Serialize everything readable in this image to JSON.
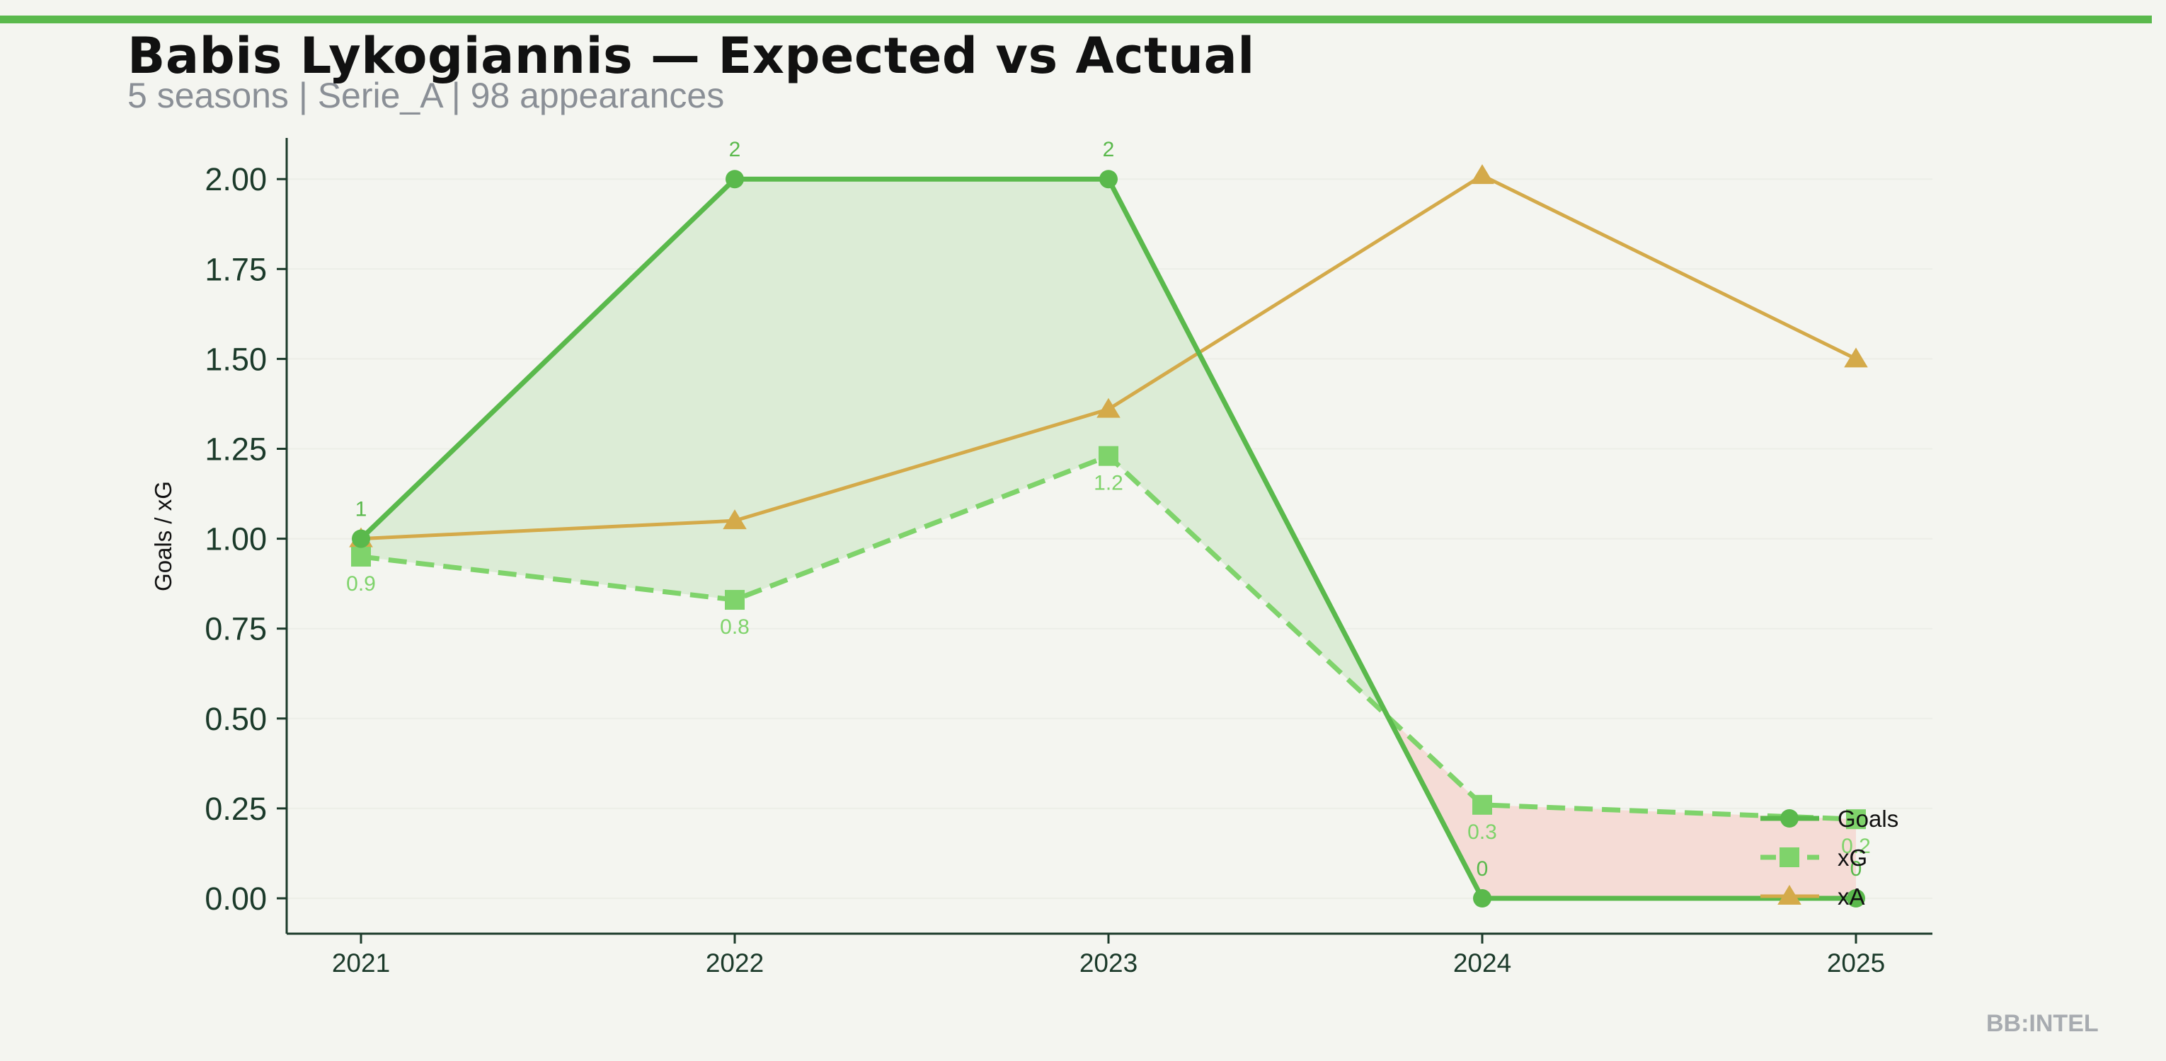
{
  "header": {
    "title": "Babis Lykogiannis — Expected vs Actual",
    "subtitle": "5 seasons | Serie_A | 98 appearances"
  },
  "watermark": "BB:INTEL",
  "colors": {
    "goals": "#5ab94c",
    "xg": "#7fd36b",
    "xa": "#d4aa4a",
    "overperform_fill": "#dcecd6",
    "underperform_fill": "#f5dcd6",
    "axis": "#1b3a2a",
    "grid": "#eceee7"
  },
  "chart_data": {
    "type": "line",
    "categories": [
      "2021",
      "2022",
      "2023",
      "2024",
      "2025"
    ],
    "ylabel": "Goals / xG",
    "ylim": [
      -0.1,
      2.12
    ],
    "yticks": [
      "0.00",
      "0.25",
      "0.50",
      "0.75",
      "1.00",
      "1.25",
      "1.50",
      "1.75",
      "2.00"
    ],
    "grid": "horizontal",
    "legend_position": "lower-right",
    "series": [
      {
        "name": "Goals",
        "values": [
          1,
          2,
          2,
          0,
          0
        ],
        "labels": [
          "1",
          "2",
          "2",
          "0",
          "0"
        ],
        "marker": "circle",
        "style": "solid"
      },
      {
        "name": "xG",
        "values": [
          0.95,
          0.83,
          1.23,
          0.26,
          0.22
        ],
        "labels": [
          "0.9",
          "0.8",
          "1.2",
          "0.3",
          "0.2"
        ],
        "marker": "square",
        "style": "dashed"
      },
      {
        "name": "xA",
        "values": [
          1.0,
          1.05,
          1.36,
          2.01,
          1.5
        ],
        "marker": "triangle",
        "style": "solid"
      }
    ]
  }
}
